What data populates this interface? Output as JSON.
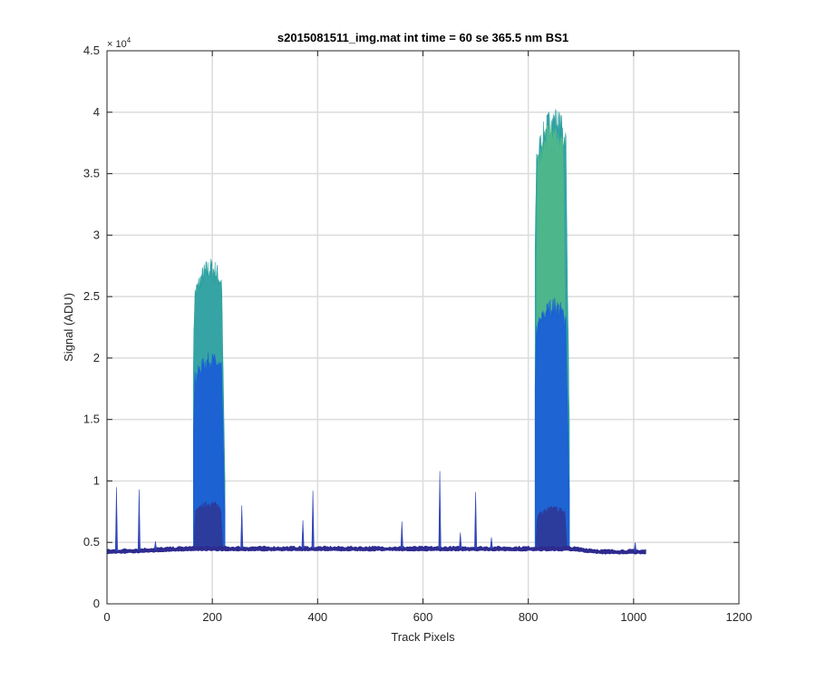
{
  "chart_data": {
    "type": "area",
    "title": "s2015081511_img.mat int time = 60 se  365.5 nm BS1",
    "xlabel": "Track Pixels",
    "ylabel": "Signal (ADU)",
    "y_exponent_label": "× 10",
    "y_exponent_power": "4",
    "xlim": [
      0,
      1200
    ],
    "ylim": [
      0,
      45000
    ],
    "grid": true,
    "x_ticks": [
      0,
      200,
      400,
      600,
      800,
      1000,
      1200
    ],
    "x_tick_labels": [
      "0",
      "200",
      "400",
      "600",
      "800",
      "1000",
      "1200"
    ],
    "y_ticks": [
      0,
      5000,
      10000,
      15000,
      20000,
      25000,
      30000,
      35000,
      40000,
      45000
    ],
    "y_tick_labels": [
      "0",
      "0.5",
      "1",
      "1.5",
      "2",
      "2.5",
      "3",
      "3.5",
      "4",
      "4.5"
    ],
    "baseline": {
      "x_start": 0,
      "x_end": 1023,
      "value_start": 4300,
      "value_mid": 4550,
      "value_end": 4300
    },
    "series": [
      {
        "color": "#2b9f9f",
        "peaks": [
          {
            "x_start": 164,
            "x_end": 224,
            "max": 28200
          },
          {
            "x_start": 813,
            "x_end": 878,
            "max": 40600
          }
        ]
      },
      {
        "color": "#4fb88a",
        "peaks": [
          {
            "x_start": 816,
            "x_end": 872,
            "max": 39500
          }
        ]
      },
      {
        "color": "#1b5fd6",
        "peaks": [
          {
            "x_start": 164,
            "x_end": 224,
            "max": 20500
          },
          {
            "x_start": 813,
            "x_end": 878,
            "max": 25000
          }
        ]
      },
      {
        "color": "#2d3a9a",
        "peaks": [
          {
            "x_start": 166,
            "x_end": 222,
            "max": 8400
          },
          {
            "x_start": 815,
            "x_end": 876,
            "max": 8000
          }
        ]
      }
    ],
    "spikes": [
      {
        "x": 18,
        "value": 9500
      },
      {
        "x": 61,
        "value": 9300
      },
      {
        "x": 92,
        "value": 5100
      },
      {
        "x": 256,
        "value": 8000
      },
      {
        "x": 372,
        "value": 6800
      },
      {
        "x": 391,
        "value": 9200
      },
      {
        "x": 560,
        "value": 6700
      },
      {
        "x": 632,
        "value": 10800
      },
      {
        "x": 671,
        "value": 5800
      },
      {
        "x": 700,
        "value": 9100
      },
      {
        "x": 730,
        "value": 5400
      },
      {
        "x": 1003,
        "value": 5000
      }
    ],
    "colors": {
      "baseline": "#2e2b8f",
      "spike": "#3044b8"
    }
  }
}
